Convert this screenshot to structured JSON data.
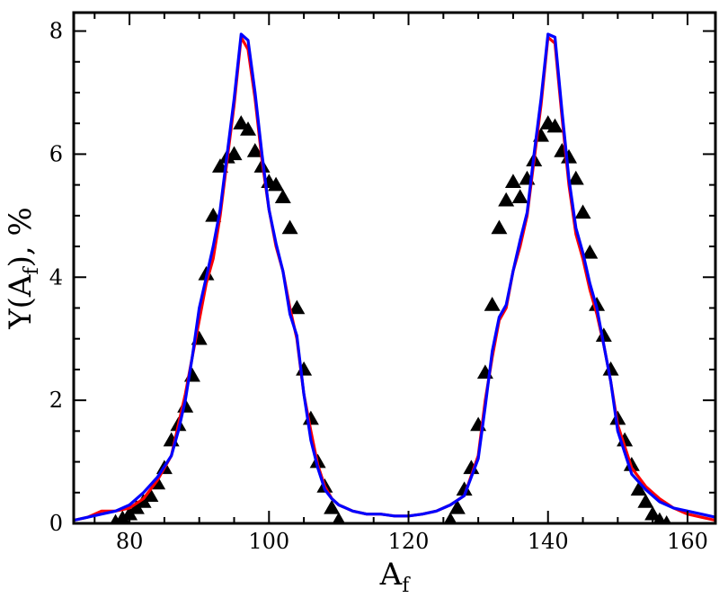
{
  "chart_data": {
    "type": "line",
    "xlabel": "A",
    "xlabel_sub": "f",
    "ylabel_main": "Y(A",
    "ylabel_sub": "f",
    "ylabel_tail": "), %",
    "xlim": [
      72,
      164
    ],
    "ylim": [
      0,
      8.3
    ],
    "xticks": [
      80,
      100,
      120,
      140,
      160
    ],
    "yticks": [
      0,
      2,
      4,
      6,
      8
    ],
    "grid": false,
    "legend": "none",
    "series": [
      {
        "style": "markers",
        "marker": "triangle",
        "color": "#000000",
        "x": [
          78,
          79,
          80,
          81,
          82,
          83,
          84,
          85,
          86,
          87,
          88,
          89,
          90,
          91,
          92,
          93,
          94,
          95,
          96,
          97,
          98,
          99,
          100,
          101,
          102,
          103,
          104,
          105,
          106,
          107,
          108,
          109,
          110,
          126,
          127,
          128,
          129,
          130,
          131,
          132,
          133,
          134,
          135,
          136,
          137,
          138,
          139,
          140,
          141,
          142,
          143,
          144,
          145,
          146,
          147,
          148,
          149,
          150,
          151,
          152,
          153,
          154,
          155,
          156,
          157
        ],
        "y": [
          0.02,
          0.08,
          0.15,
          0.25,
          0.35,
          0.45,
          0.65,
          0.9,
          1.35,
          1.6,
          1.9,
          2.4,
          3.0,
          4.05,
          5.0,
          5.8,
          5.95,
          6.0,
          6.5,
          6.4,
          6.05,
          5.8,
          5.55,
          5.5,
          5.3,
          4.8,
          3.5,
          2.5,
          1.7,
          1.0,
          0.6,
          0.25,
          0.05,
          0.05,
          0.25,
          0.55,
          0.9,
          1.6,
          2.45,
          3.55,
          4.8,
          5.25,
          5.55,
          5.3,
          5.6,
          5.9,
          6.3,
          6.5,
          6.45,
          6.05,
          5.95,
          5.6,
          5.05,
          4.4,
          3.55,
          3.05,
          2.5,
          1.7,
          1.35,
          0.95,
          0.55,
          0.35,
          0.15,
          0.05,
          0.0
        ]
      },
      {
        "style": "line",
        "color": "#ff0000",
        "x": [
          72,
          74,
          76,
          78,
          80,
          82,
          84,
          86,
          87,
          88,
          89,
          90,
          91,
          92,
          93,
          94,
          95,
          96,
          97,
          98,
          99,
          100,
          101,
          102,
          103,
          104,
          105,
          106,
          107,
          108,
          109,
          110,
          112,
          114,
          116,
          118,
          120,
          122,
          124,
          126,
          128,
          130,
          131,
          132,
          133,
          134,
          135,
          136,
          137,
          138,
          139,
          140,
          141,
          142,
          143,
          144,
          145,
          146,
          147,
          148,
          149,
          150,
          152,
          154,
          156,
          158,
          160,
          162,
          164
        ],
        "y": [
          0.05,
          0.1,
          0.2,
          0.2,
          0.25,
          0.4,
          0.7,
          1.1,
          1.6,
          2.1,
          2.7,
          3.3,
          3.9,
          4.3,
          5.0,
          5.9,
          6.8,
          7.9,
          7.7,
          6.9,
          5.9,
          5.1,
          4.5,
          4.1,
          3.5,
          3.0,
          2.1,
          1.5,
          0.95,
          0.6,
          0.4,
          0.3,
          0.2,
          0.15,
          0.15,
          0.12,
          0.12,
          0.15,
          0.2,
          0.3,
          0.45,
          1.1,
          2.0,
          2.7,
          3.3,
          3.5,
          4.1,
          4.5,
          5.0,
          5.9,
          6.8,
          7.9,
          7.8,
          6.6,
          5.5,
          4.7,
          4.3,
          3.8,
          3.4,
          2.9,
          2.3,
          1.6,
          0.9,
          0.6,
          0.4,
          0.25,
          0.15,
          0.1,
          0.05
        ]
      },
      {
        "style": "line",
        "color": "#0000ff",
        "x": [
          72,
          74,
          76,
          78,
          80,
          82,
          84,
          86,
          87,
          88,
          89,
          90,
          91,
          92,
          93,
          94,
          95,
          96,
          97,
          98,
          99,
          100,
          101,
          102,
          103,
          104,
          105,
          106,
          107,
          108,
          109,
          110,
          112,
          114,
          116,
          118,
          120,
          122,
          124,
          126,
          128,
          130,
          131,
          132,
          133,
          134,
          135,
          136,
          137,
          138,
          139,
          140,
          141,
          142,
          143,
          144,
          145,
          146,
          147,
          148,
          149,
          150,
          152,
          154,
          156,
          158,
          160,
          162,
          164
        ],
        "y": [
          0.05,
          0.1,
          0.15,
          0.2,
          0.3,
          0.5,
          0.75,
          1.1,
          1.5,
          2.0,
          2.7,
          3.5,
          4.0,
          4.5,
          5.1,
          6.0,
          6.9,
          7.95,
          7.85,
          7.0,
          6.0,
          5.1,
          4.55,
          4.1,
          3.4,
          3.05,
          2.1,
          1.35,
          0.9,
          0.55,
          0.4,
          0.3,
          0.2,
          0.15,
          0.15,
          0.12,
          0.12,
          0.15,
          0.2,
          0.3,
          0.45,
          1.05,
          1.9,
          2.8,
          3.35,
          3.55,
          4.1,
          4.6,
          5.05,
          6.0,
          6.9,
          7.95,
          7.9,
          6.7,
          5.6,
          4.8,
          4.4,
          3.9,
          3.5,
          2.9,
          2.3,
          1.5,
          0.8,
          0.55,
          0.35,
          0.25,
          0.2,
          0.15,
          0.1
        ]
      }
    ]
  }
}
